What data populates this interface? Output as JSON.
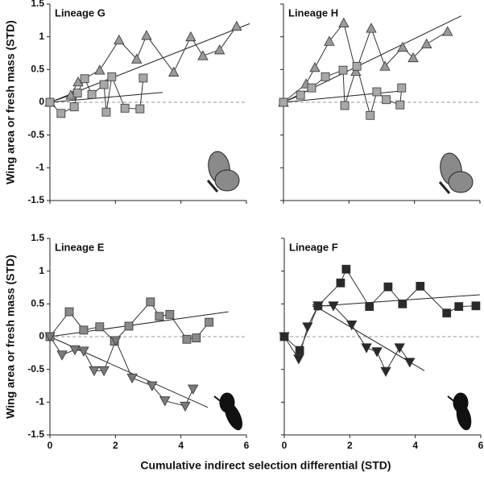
{
  "xlabel": "Cumulative indirect selection differential (STD)",
  "chart_data": [
    {
      "type": "line",
      "title": "Lineage G",
      "ylabel": "Wing area or fresh mass (STD)",
      "xlim": [
        0,
        6
      ],
      "ylim": [
        -1.5,
        1.5
      ],
      "xticks": [
        0,
        2,
        4,
        6
      ],
      "yticks": [
        -1.5,
        -1,
        -0.5,
        0,
        0.5,
        1,
        1.5
      ],
      "xtick_labels": false,
      "ytick_labels": true,
      "zero_line": true,
      "series": [
        {
          "marker": "triangle",
          "color": "#9a9a9a",
          "x": [
            0,
            0.64,
            0.86,
            1.52,
            2.11,
            2.65,
            2.95,
            3.78,
            4.3,
            4.67,
            5.18,
            5.7
          ],
          "values": [
            0,
            0.11,
            0.31,
            0.49,
            0.95,
            0.66,
            1.02,
            0.46,
            1.0,
            0.71,
            0.8,
            1.16
          ]
        },
        {
          "marker": "square",
          "color": "#a8a8a8",
          "x": [
            0,
            0.34,
            0.74,
            0.84,
            1.06,
            1.28,
            1.65,
            1.72,
            1.89,
            2.29,
            2.75,
            2.85
          ],
          "values": [
            0,
            -0.17,
            -0.07,
            0.14,
            0.36,
            0.12,
            0.27,
            -0.15,
            0.39,
            -0.09,
            -0.1,
            0.37
          ]
        }
      ],
      "fits": [
        {
          "x": [
            0,
            6.1
          ],
          "values": [
            0,
            1.2
          ]
        },
        {
          "x": [
            0,
            3.44
          ],
          "values": [
            0,
            0.15
          ]
        }
      ]
    },
    {
      "type": "line",
      "title": "Lineage H",
      "xlim": [
        0,
        6
      ],
      "ylim": [
        -1.5,
        1.5
      ],
      "xticks": [
        0,
        2,
        4,
        6
      ],
      "yticks": [
        -1.5,
        -1,
        -0.5,
        0,
        0.5,
        1,
        1.5
      ],
      "xtick_labels": false,
      "ytick_labels": false,
      "zero_line": true,
      "series": [
        {
          "marker": "triangle",
          "color": "#9a9a9a",
          "x": [
            0,
            0.69,
            0.96,
            1.4,
            1.84,
            2.21,
            2.68,
            3.1,
            3.64,
            3.96,
            4.37,
            5.01
          ],
          "values": [
            0,
            0.28,
            0.53,
            0.93,
            1.21,
            0.47,
            1.13,
            0.55,
            0.84,
            0.68,
            0.89,
            1.08
          ]
        },
        {
          "marker": "square",
          "color": "#a8a8a8",
          "x": [
            0,
            0.52,
            0.86,
            1.28,
            1.82,
            1.87,
            2.24,
            2.65,
            2.85,
            3.14,
            3.56,
            3.61
          ],
          "values": [
            0,
            0.11,
            0.22,
            0.39,
            0.49,
            -0.05,
            0.55,
            -0.2,
            0.16,
            0.04,
            -0.04,
            0.22
          ]
        }
      ],
      "fits": [
        {
          "x": [
            0,
            5.43
          ],
          "values": [
            0,
            1.32
          ]
        },
        {
          "x": [
            0,
            3.56
          ],
          "values": [
            0,
            0.17
          ]
        }
      ]
    },
    {
      "type": "line",
      "title": "Lineage E",
      "ylabel": "Wing area or fresh mass (STD)",
      "xlim": [
        0,
        6
      ],
      "ylim": [
        -1.5,
        1.5
      ],
      "xticks": [
        0,
        2,
        4,
        6
      ],
      "yticks": [
        -1.5,
        -1,
        -0.5,
        0,
        0.5,
        1,
        1.5
      ],
      "xtick_labels": true,
      "ytick_labels": true,
      "zero_line": true,
      "series": [
        {
          "marker": "square",
          "color": "#8a8a8a",
          "x": [
            0,
            0.59,
            1.03,
            1.52,
            1.97,
            2.41,
            3.07,
            3.34,
            3.66,
            4.18,
            4.47,
            4.86
          ],
          "values": [
            0,
            0.38,
            0.1,
            0.15,
            -0.07,
            0.16,
            0.53,
            0.31,
            0.34,
            -0.04,
            -0.02,
            0.22
          ]
        },
        {
          "marker": "triangle-down",
          "color": "#7a7a7a",
          "x": [
            0,
            0.37,
            0.76,
            1.03,
            1.35,
            1.65,
            2.01,
            2.51,
            3.12,
            3.51,
            4.13,
            4.37
          ],
          "values": [
            0,
            -0.28,
            -0.2,
            -0.22,
            -0.52,
            -0.52,
            -0.06,
            -0.63,
            -0.75,
            -0.98,
            -1.06,
            -0.8
          ]
        }
      ],
      "fits": [
        {
          "x": [
            0,
            5.45
          ],
          "values": [
            0,
            0.38
          ]
        },
        {
          "x": [
            0,
            4.82
          ],
          "values": [
            0,
            -1.08
          ]
        }
      ]
    },
    {
      "type": "line",
      "title": "Lineage F",
      "xlim": [
        0,
        6
      ],
      "ylim": [
        -1.5,
        1.5
      ],
      "xticks": [
        0,
        2,
        4,
        6
      ],
      "yticks": [
        -1.5,
        -1,
        -0.5,
        0,
        0.5,
        1,
        1.5
      ],
      "xtick_labels": true,
      "ytick_labels": false,
      "zero_line": true,
      "series": [
        {
          "marker": "square",
          "color": "#2a2a2a",
          "x": [
            0,
            0.47,
            1.03,
            1.72,
            1.89,
            2.6,
            3.17,
            3.61,
            4.15,
            4.96,
            5.33,
            5.85
          ],
          "values": [
            0,
            -0.21,
            0.47,
            0.82,
            1.03,
            0.46,
            0.76,
            0.5,
            0.77,
            0.36,
            0.46,
            0.47
          ]
        },
        {
          "marker": "triangle-down",
          "color": "#2a2a2a",
          "x": [
            0,
            0.44,
            0.71,
            1.03,
            1.5,
            2.06,
            2.51,
            2.83,
            3.1,
            3.52,
            3.83
          ],
          "values": [
            0,
            -0.34,
            0.15,
            0.47,
            0.47,
            0.18,
            -0.17,
            -0.23,
            -0.53,
            -0.17,
            -0.39
          ]
        }
      ],
      "fits": [
        {
          "x": [
            0.86,
            5.97
          ],
          "values": [
            0.46,
            0.64
          ]
        },
        {
          "x": [
            0.86,
            4.28
          ],
          "values": [
            0.49,
            -0.52
          ]
        }
      ]
    }
  ]
}
